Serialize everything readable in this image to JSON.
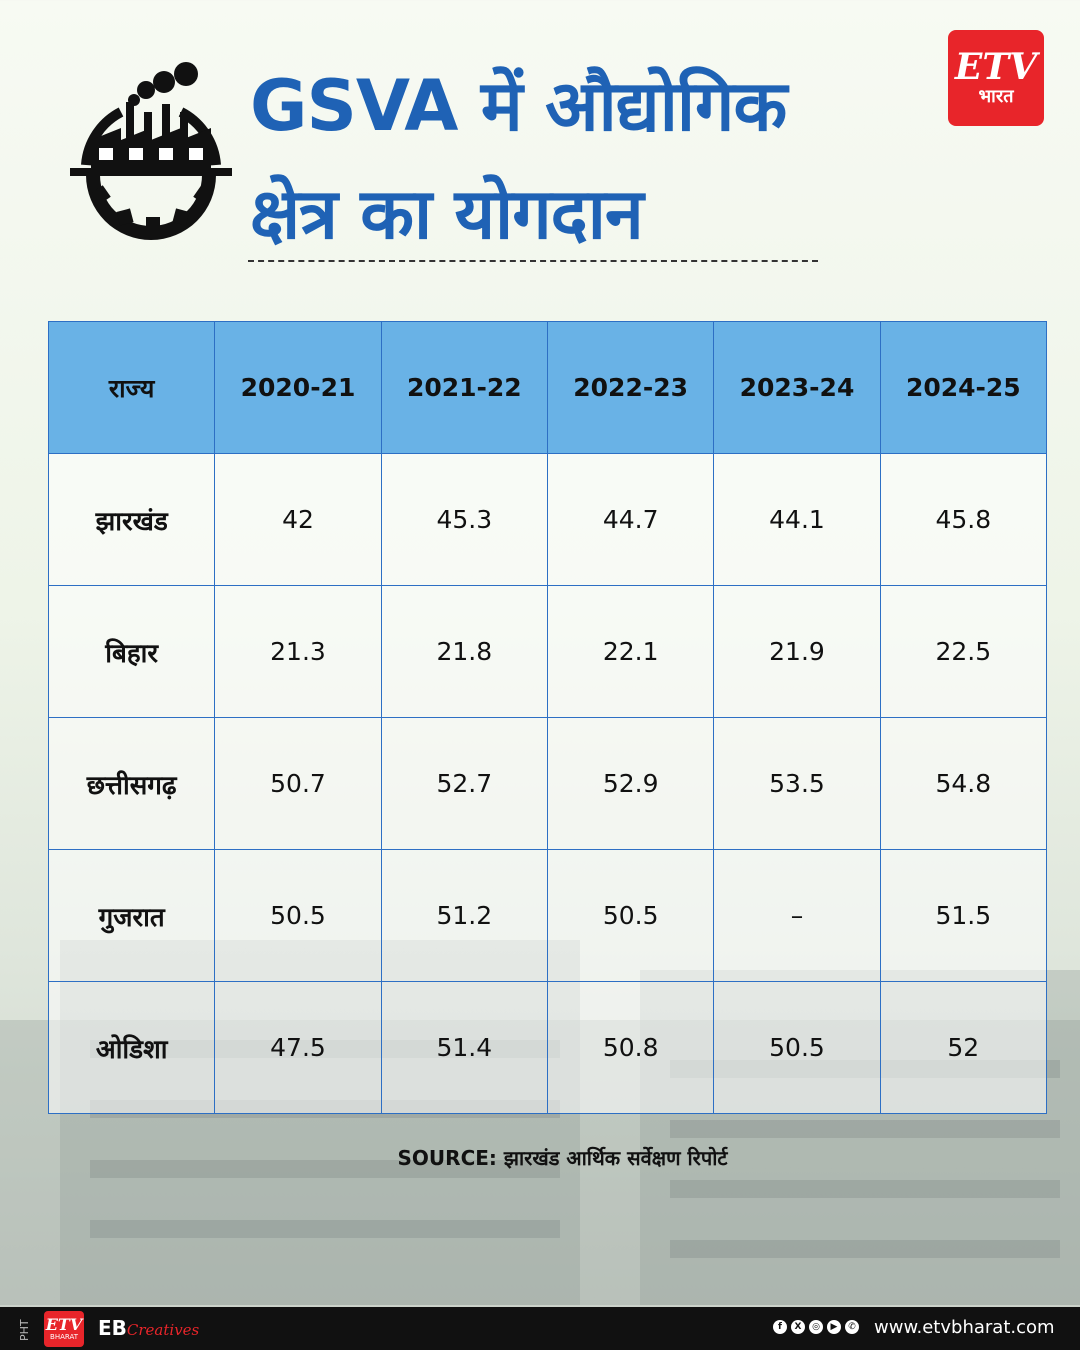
{
  "header": {
    "title_line1": "GSVA में औद्योगिक",
    "title_line2": "क्षेत्र का योगदान"
  },
  "brand": {
    "logo_mark": "ETV",
    "logo_sub": "भारत",
    "accent_color": "#e8252a",
    "title_color": "#1f62b5",
    "table_header_color": "#69b2e6"
  },
  "table": {
    "headers": [
      "राज्य",
      "2020-21",
      "2021-22",
      "2022-23",
      "2023-24",
      "2024-25"
    ],
    "rows": [
      [
        "झारखंड",
        "42",
        "45.3",
        "44.7",
        "44.1",
        "45.8"
      ],
      [
        "बिहार",
        "21.3",
        "21.8",
        "22.1",
        "21.9",
        "22.5"
      ],
      [
        "छत्तीसगढ़",
        "50.7",
        "52.7",
        "52.9",
        "53.5",
        "54.8"
      ],
      [
        "गुजरात",
        "50.5",
        "51.2",
        "50.5",
        "–",
        "51.5"
      ],
      [
        "ओडिशा",
        "47.5",
        "51.4",
        "50.8",
        "50.5",
        "52"
      ]
    ]
  },
  "source": "SOURCE: झारखंड आर्थिक सर्वेक्षण रिपोर्ट",
  "footer": {
    "pht": "PHT",
    "logo_mark": "ETV",
    "logo_sub": "BHARAT",
    "eb": "EB",
    "creatives": "Creatives",
    "social_icons": [
      "facebook-icon",
      "x-icon",
      "instagram-icon",
      "youtube-icon",
      "whatsapp-icon"
    ],
    "url": "www.etvbharat.com"
  }
}
